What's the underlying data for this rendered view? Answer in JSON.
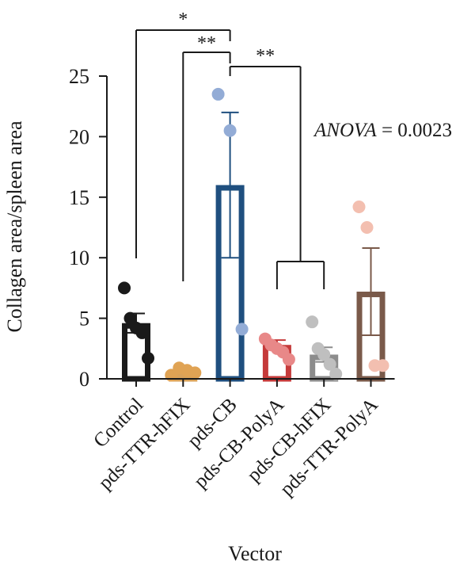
{
  "chart_data": {
    "type": "bar",
    "xlabel": "Vector",
    "ylabel": "Collagen area/spleen area",
    "ylim": [
      0,
      25
    ],
    "yticks": [
      0,
      5,
      10,
      15,
      20,
      25
    ],
    "grid": false,
    "annotation": {
      "label": "ANOVA",
      "text": " = 0.0023"
    },
    "categories": [
      "Control",
      "pds-TTR-hFIX",
      "pds-CB",
      "pds-CB-PolyA",
      "pds-CB-hFIX",
      "pds-TTR-PolyA"
    ],
    "values": [
      4.6,
      0.6,
      16.0,
      2.8,
      2.0,
      7.2
    ],
    "error": [
      0.8,
      0.2,
      6.0,
      0.4,
      0.6,
      3.6
    ],
    "colors": [
      "#1a1a1a",
      "#d9a25a",
      "#1f4f7f",
      "#c53a3a",
      "#8c8c8c",
      "#7a5a4a"
    ],
    "point_colors": [
      "#1a1a1a",
      "#e0a354",
      "#93acd6",
      "#e88888",
      "#bfbfbf",
      "#f3bfb0"
    ],
    "points": [
      [
        7.5,
        5.0,
        4.2,
        3.8,
        1.7
      ],
      [
        0.3,
        0.9,
        0.7,
        0.5
      ],
      [
        23.5,
        20.5,
        4.1
      ],
      [
        3.3,
        2.8,
        2.5,
        2.2,
        1.6
      ],
      [
        4.7,
        2.5,
        2.0,
        1.2,
        0.4
      ],
      [
        14.2,
        12.5,
        1.1,
        1.1
      ]
    ],
    "significance": [
      {
        "label": "*",
        "from": 0,
        "to": 2
      },
      {
        "label": "**",
        "from": 1,
        "to": 2
      },
      {
        "label": "**",
        "from": 2,
        "to": [
          3,
          4
        ]
      }
    ]
  }
}
